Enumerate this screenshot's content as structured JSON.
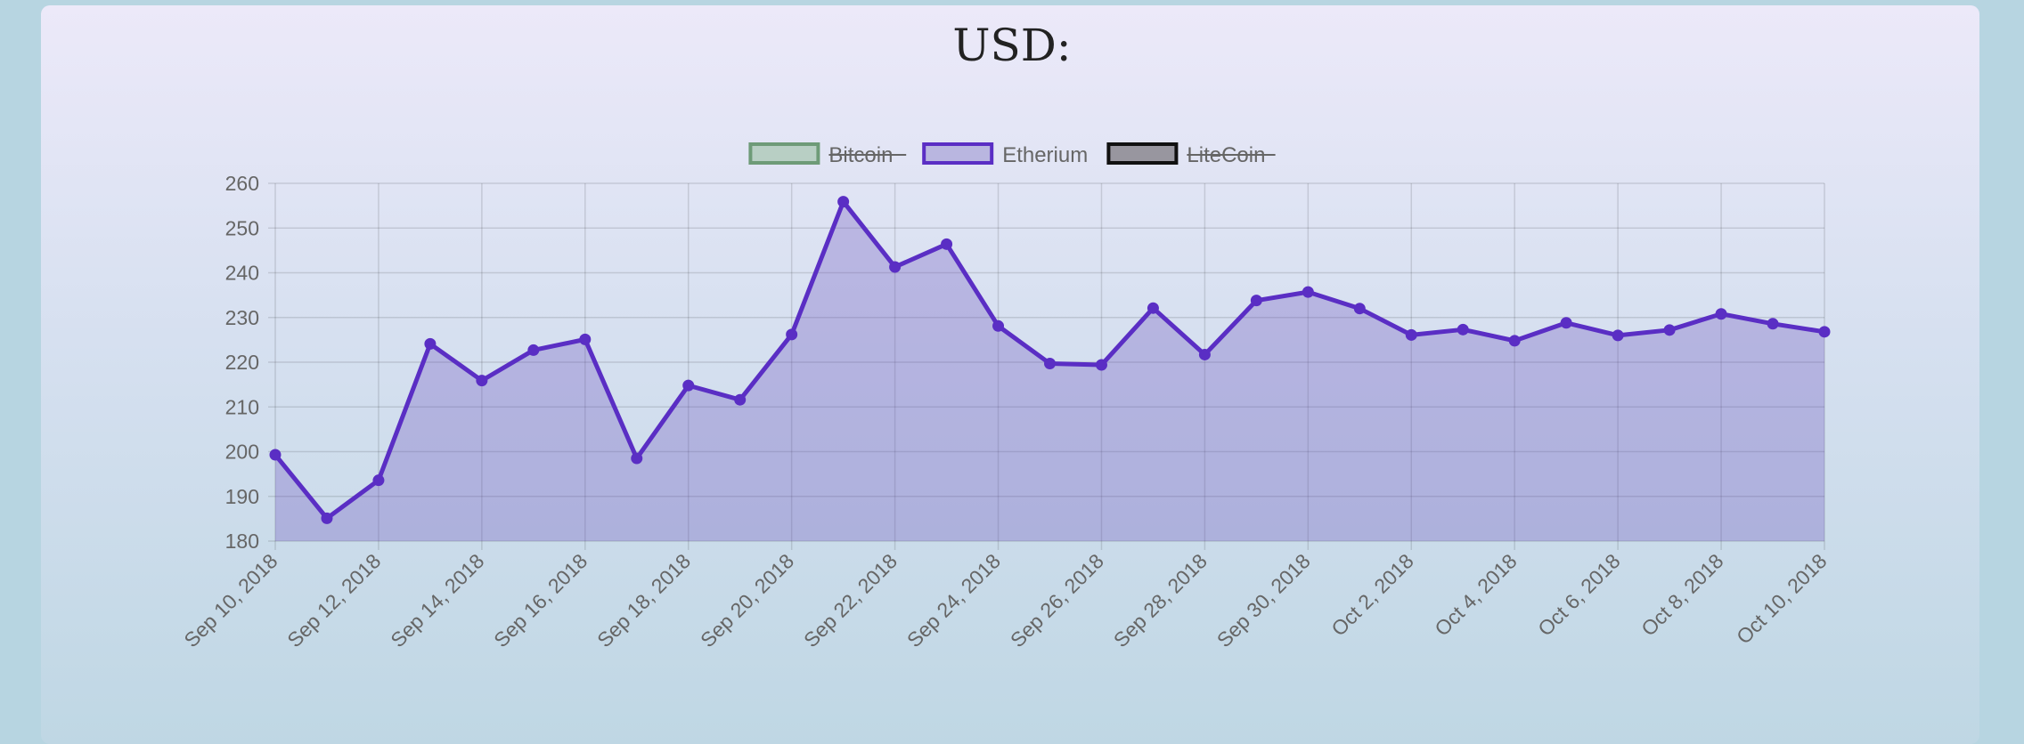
{
  "page": {
    "title": "USD:"
  },
  "chart_data": {
    "type": "line",
    "title": "USD:",
    "xlabel": "",
    "ylabel": "",
    "ylim": [
      180,
      260
    ],
    "yticks": [
      260,
      250,
      240,
      230,
      220,
      210,
      200,
      190,
      180
    ],
    "grid": true,
    "legend_position": "top",
    "x": [
      "Sep 10, 2018",
      "Sep 11, 2018",
      "Sep 12, 2018",
      "Sep 13, 2018",
      "Sep 14, 2018",
      "Sep 15, 2018",
      "Sep 16, 2018",
      "Sep 17, 2018",
      "Sep 18, 2018",
      "Sep 19, 2018",
      "Sep 20, 2018",
      "Sep 21, 2018",
      "Sep 22, 2018",
      "Sep 23, 2018",
      "Sep 24, 2018",
      "Sep 25, 2018",
      "Sep 26, 2018",
      "Sep 27, 2018",
      "Sep 28, 2018",
      "Sep 29, 2018",
      "Sep 30, 2018",
      "Oct 1, 2018",
      "Oct 2, 2018",
      "Oct 3, 2018",
      "Oct 4, 2018",
      "Oct 5, 2018",
      "Oct 6, 2018",
      "Oct 7, 2018",
      "Oct 8, 2018",
      "Oct 9, 2018",
      "Oct 10, 2018"
    ],
    "xtick_labels": [
      "Sep 10, 2018",
      "Sep 12, 2018",
      "Sep 14, 2018",
      "Sep 16, 2018",
      "Sep 18, 2018",
      "Sep 20, 2018",
      "Sep 22, 2018",
      "Sep 24, 2018",
      "Sep 26, 2018",
      "Sep 28, 2018",
      "Sep 30, 2018",
      "Oct 2, 2018",
      "Oct 4, 2018",
      "Oct 6, 2018",
      "Oct 8, 2018",
      "Oct 10, 2018"
    ],
    "legend": [
      {
        "name": "Bitcoin",
        "color": "#6e9b78",
        "fill": "#b8cfc4",
        "hidden": true
      },
      {
        "name": "Etherium",
        "color": "#5a2ec4",
        "fill": "#b9b6e0",
        "hidden": false
      },
      {
        "name": "LiteCoin",
        "color": "#111111",
        "fill": "#98969f",
        "hidden": true
      }
    ],
    "series": [
      {
        "name": "Etherium",
        "color": "#5a2ec4",
        "fill": "rgba(106, 80, 190, 0.30)",
        "values": [
          199.3,
          185.1,
          193.6,
          224.1,
          215.9,
          222.7,
          225.1,
          198.5,
          214.8,
          211.6,
          226.2,
          255.9,
          241.3,
          246.4,
          228.1,
          219.7,
          219.4,
          232.1,
          221.7,
          233.8,
          235.7,
          232.0,
          226.1,
          227.3,
          224.8,
          228.8,
          226.0,
          227.2,
          230.8,
          228.6,
          226.8
        ]
      }
    ]
  }
}
